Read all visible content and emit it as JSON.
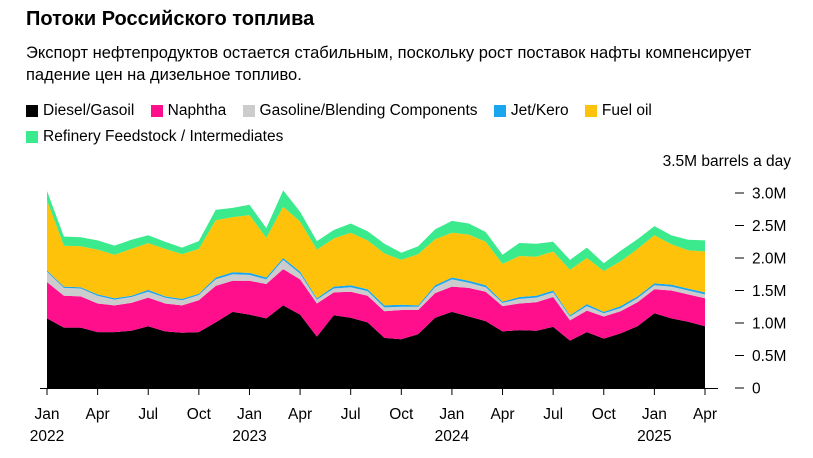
{
  "title": "Потоки Российского топлива",
  "subtitle": "Экспорт нефтепродуктов остается стабильным, поскольку рост поставок нафты компенсирует падение цен на дизельное топливо.",
  "unit_label": "3.5M barrels a day",
  "colors": {
    "diesel": "#000000",
    "naphtha": "#ff0f8c",
    "gasoline": "#cccccc",
    "jet": "#19a6ef",
    "fuel_oil": "#ffc20a",
    "feedstock": "#3aea8d",
    "axis": "#000000"
  },
  "chart_data": {
    "type": "area",
    "stacked": true,
    "title": "Потоки Российского топлива",
    "ylabel": "barrels a day",
    "ylim": [
      0,
      3.2
    ],
    "yticks": [
      {
        "value": 0,
        "label": "0"
      },
      {
        "value": 0.5,
        "label": "0.5M"
      },
      {
        "value": 1.0,
        "label": "1.0M"
      },
      {
        "value": 1.5,
        "label": "1.5M"
      },
      {
        "value": 2.0,
        "label": "2.0M"
      },
      {
        "value": 2.5,
        "label": "2.5M"
      },
      {
        "value": 3.0,
        "label": "3.0M"
      }
    ],
    "xticks": [
      {
        "index": 0,
        "label": "Jan",
        "year": "2022"
      },
      {
        "index": 3,
        "label": "Apr"
      },
      {
        "index": 6,
        "label": "Jul"
      },
      {
        "index": 9,
        "label": "Oct"
      },
      {
        "index": 12,
        "label": "Jan",
        "year": "2023"
      },
      {
        "index": 15,
        "label": "Apr"
      },
      {
        "index": 18,
        "label": "Jul"
      },
      {
        "index": 21,
        "label": "Oct"
      },
      {
        "index": 24,
        "label": "Jan",
        "year": "2024"
      },
      {
        "index": 27,
        "label": "Apr"
      },
      {
        "index": 30,
        "label": "Jul"
      },
      {
        "index": 33,
        "label": "Oct"
      },
      {
        "index": 36,
        "label": "Jan",
        "year": "2025"
      },
      {
        "index": 39,
        "label": "Apr"
      }
    ],
    "x": [
      "2022-01",
      "2022-02",
      "2022-03",
      "2022-04",
      "2022-05",
      "2022-06",
      "2022-07",
      "2022-08",
      "2022-09",
      "2022-10",
      "2022-11",
      "2022-12",
      "2023-01",
      "2023-02",
      "2023-03",
      "2023-04",
      "2023-05",
      "2023-06",
      "2023-07",
      "2023-08",
      "2023-09",
      "2023-10",
      "2023-11",
      "2023-12",
      "2024-01",
      "2024-02",
      "2024-03",
      "2024-04",
      "2024-05",
      "2024-06",
      "2024-07",
      "2024-08",
      "2024-09",
      "2024-10",
      "2024-11",
      "2024-12",
      "2025-01",
      "2025-02",
      "2025-03",
      "2025-04"
    ],
    "series": [
      {
        "name": "Diesel/Gasoil",
        "key": "diesel",
        "values": [
          1.07,
          0.93,
          0.93,
          0.86,
          0.86,
          0.88,
          0.95,
          0.87,
          0.85,
          0.86,
          1.01,
          1.17,
          1.13,
          1.07,
          1.27,
          1.13,
          0.79,
          1.12,
          1.08,
          1.01,
          0.77,
          0.75,
          0.83,
          1.08,
          1.17,
          1.1,
          1.03,
          0.87,
          0.89,
          0.88,
          0.94,
          0.73,
          0.86,
          0.76,
          0.84,
          0.95,
          1.15,
          1.07,
          1.02,
          0.95
        ]
      },
      {
        "name": "Naphtha",
        "key": "naphtha",
        "values": [
          0.56,
          0.49,
          0.48,
          0.44,
          0.41,
          0.43,
          0.44,
          0.43,
          0.42,
          0.49,
          0.56,
          0.48,
          0.52,
          0.53,
          0.56,
          0.54,
          0.51,
          0.35,
          0.4,
          0.41,
          0.41,
          0.45,
          0.37,
          0.38,
          0.39,
          0.44,
          0.45,
          0.39,
          0.41,
          0.44,
          0.46,
          0.31,
          0.33,
          0.34,
          0.34,
          0.37,
          0.37,
          0.43,
          0.42,
          0.43
        ]
      },
      {
        "name": "Gasoline/Blending Components",
        "key": "gasoline",
        "values": [
          0.16,
          0.12,
          0.12,
          0.12,
          0.09,
          0.09,
          0.09,
          0.09,
          0.08,
          0.08,
          0.1,
          0.1,
          0.09,
          0.07,
          0.14,
          0.09,
          0.06,
          0.06,
          0.07,
          0.07,
          0.06,
          0.05,
          0.05,
          0.09,
          0.11,
          0.08,
          0.07,
          0.05,
          0.07,
          0.07,
          0.07,
          0.06,
          0.07,
          0.05,
          0.05,
          0.06,
          0.06,
          0.06,
          0.06,
          0.06
        ]
      },
      {
        "name": "Jet/Kero",
        "key": "jet",
        "values": [
          0.02,
          0.02,
          0.02,
          0.02,
          0.02,
          0.02,
          0.03,
          0.02,
          0.02,
          0.02,
          0.03,
          0.03,
          0.03,
          0.03,
          0.03,
          0.03,
          0.02,
          0.03,
          0.03,
          0.03,
          0.03,
          0.03,
          0.02,
          0.03,
          0.03,
          0.03,
          0.03,
          0.02,
          0.03,
          0.03,
          0.03,
          0.02,
          0.03,
          0.02,
          0.03,
          0.03,
          0.03,
          0.03,
          0.03,
          0.03
        ]
      },
      {
        "name": "Fuel oil",
        "key": "fuel_oil",
        "values": [
          1.08,
          0.63,
          0.63,
          0.69,
          0.67,
          0.72,
          0.72,
          0.73,
          0.69,
          0.69,
          0.88,
          0.85,
          0.89,
          0.61,
          0.79,
          0.77,
          0.75,
          0.74,
          0.81,
          0.75,
          0.8,
          0.69,
          0.79,
          0.71,
          0.69,
          0.71,
          0.67,
          0.58,
          0.63,
          0.6,
          0.6,
          0.7,
          0.71,
          0.63,
          0.69,
          0.73,
          0.74,
          0.62,
          0.59,
          0.63
        ]
      },
      {
        "name": "Refinery Feedstock / Intermediates",
        "key": "feedstock",
        "values": [
          0.14,
          0.14,
          0.14,
          0.14,
          0.14,
          0.14,
          0.12,
          0.11,
          0.1,
          0.12,
          0.16,
          0.14,
          0.16,
          0.15,
          0.25,
          0.15,
          0.13,
          0.13,
          0.14,
          0.14,
          0.15,
          0.11,
          0.12,
          0.15,
          0.18,
          0.17,
          0.15,
          0.14,
          0.2,
          0.2,
          0.15,
          0.15,
          0.16,
          0.12,
          0.16,
          0.15,
          0.14,
          0.14,
          0.16,
          0.17
        ]
      }
    ]
  }
}
